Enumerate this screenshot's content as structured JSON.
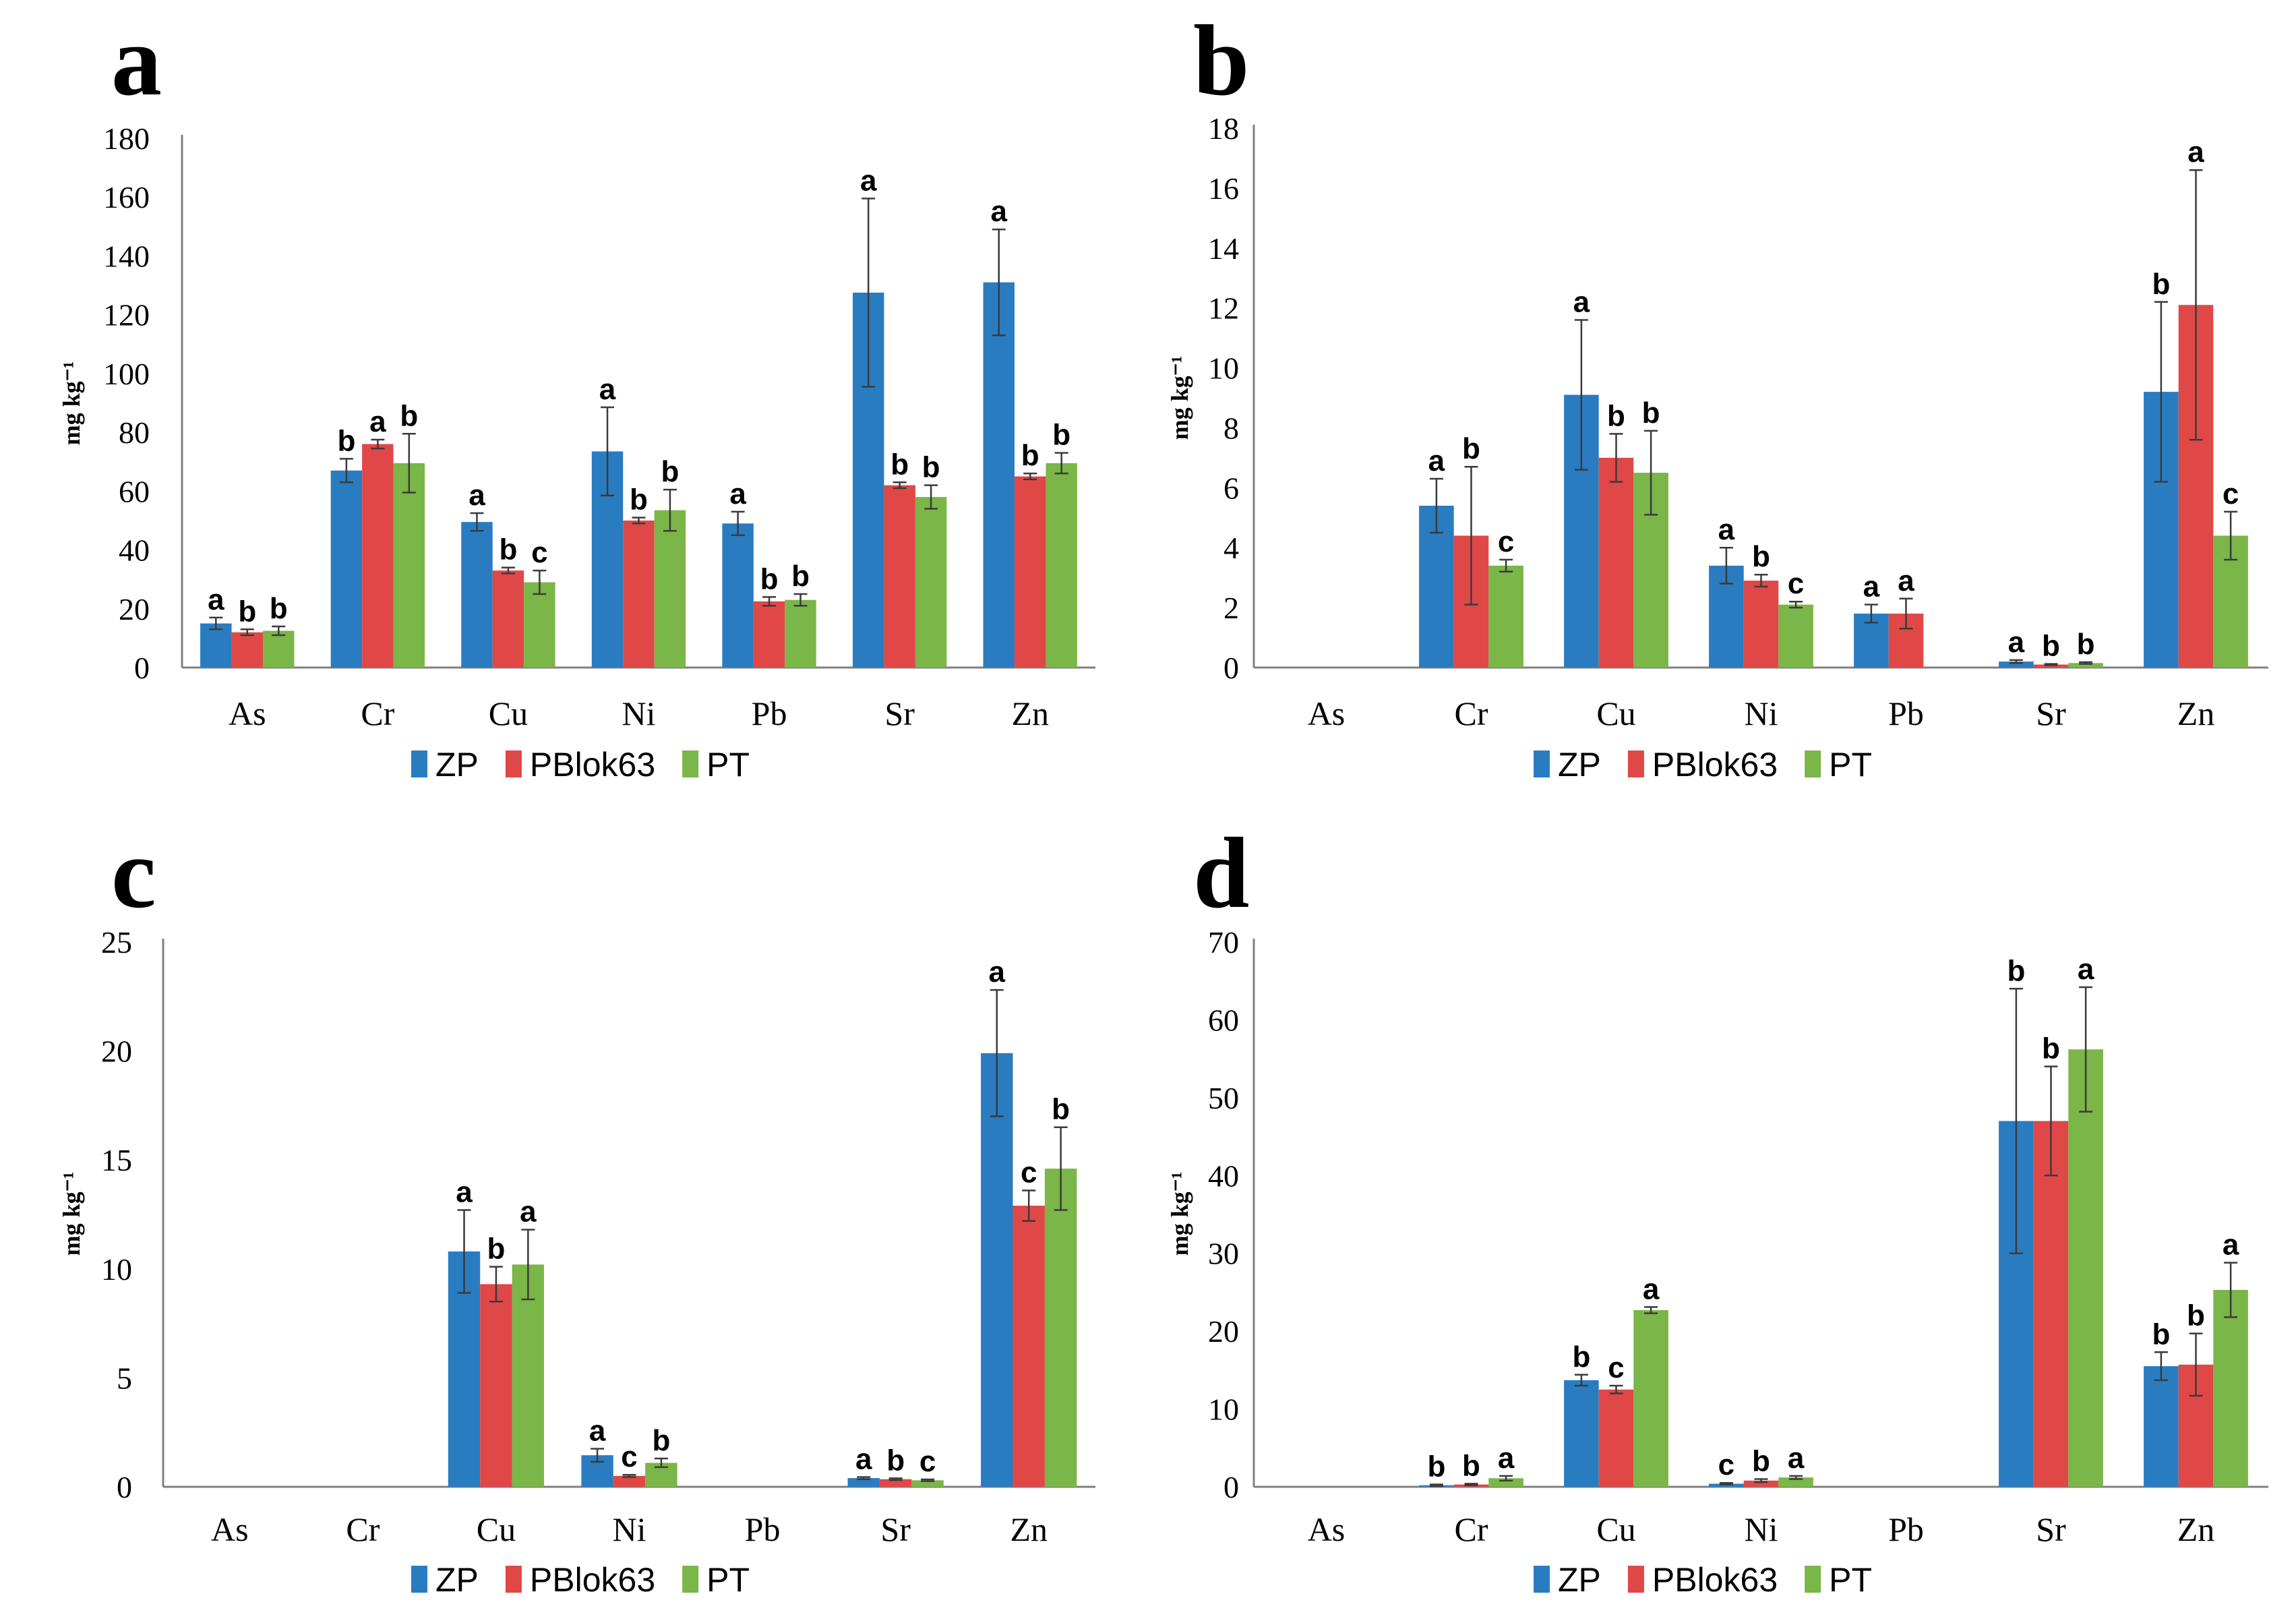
{
  "colors": {
    "ZP": "#2a7cc1",
    "PBlok63": "#e04848",
    "PT": "#7ab648"
  },
  "chart_data": [
    {
      "panel": "a",
      "type": "bar",
      "ylabel": "mg kg⁻¹",
      "ylim": [
        0,
        180
      ],
      "yticks": [
        0,
        20,
        40,
        60,
        80,
        100,
        120,
        140,
        160,
        180
      ],
      "categories": [
        "As",
        "Cr",
        "Cu",
        "Ni",
        "Pb",
        "Sr",
        "Zn"
      ],
      "legend": "bottom",
      "series": [
        {
          "name": "ZP",
          "values": [
            15,
            67,
            49.5,
            73.5,
            49,
            127.5,
            131
          ],
          "errors": [
            2,
            4,
            3,
            15,
            4,
            32,
            18
          ],
          "labels": [
            "a",
            "b",
            "a",
            "a",
            "a",
            "a",
            "a"
          ]
        },
        {
          "name": "PBlok63",
          "values": [
            12,
            76,
            33,
            50,
            22.5,
            62,
            65
          ],
          "errors": [
            1,
            1.5,
            1,
            1,
            1.5,
            1,
            1
          ],
          "labels": [
            "b",
            "a",
            "b",
            "b",
            "b",
            "b",
            "b"
          ]
        },
        {
          "name": "PT",
          "values": [
            12.5,
            69.5,
            29,
            53.5,
            23,
            58,
            69.5
          ],
          "errors": [
            1.5,
            10,
            4,
            7,
            2,
            4,
            3.5
          ],
          "labels": [
            "b",
            "b",
            "c",
            "b",
            "b",
            "b",
            "b"
          ]
        }
      ]
    },
    {
      "panel": "b",
      "type": "bar",
      "ylabel": "mg kg⁻¹",
      "ylim": [
        0,
        18
      ],
      "yticks": [
        0,
        2,
        4,
        6,
        8,
        10,
        12,
        14,
        16,
        18
      ],
      "categories": [
        "As",
        "Cr",
        "Cu",
        "Ni",
        "Pb",
        "Sr",
        "Zn"
      ],
      "legend": "bottom",
      "series": [
        {
          "name": "ZP",
          "values": [
            0,
            5.4,
            9.1,
            3.4,
            1.8,
            0.2,
            9.2
          ],
          "errors": [
            0,
            0.9,
            2.5,
            0.6,
            0.3,
            0.05,
            3
          ],
          "labels": [
            "",
            "a",
            "a",
            "a",
            "a",
            "a",
            "b"
          ]
        },
        {
          "name": "PBlok63",
          "values": [
            0,
            4.4,
            7,
            2.9,
            1.8,
            0.1,
            12.1
          ],
          "errors": [
            0,
            2.3,
            0.8,
            0.2,
            0.5,
            0.02,
            4.5
          ],
          "labels": [
            "",
            "b",
            "b",
            "b",
            "a",
            "b",
            "a"
          ]
        },
        {
          "name": "PT",
          "values": [
            0,
            3.4,
            6.5,
            2.1,
            0,
            0.15,
            4.4
          ],
          "errors": [
            0,
            0.2,
            1.4,
            0.1,
            0,
            0.03,
            0.8
          ],
          "labels": [
            "",
            "c",
            "b",
            "c",
            "",
            "b",
            "c"
          ]
        }
      ]
    },
    {
      "panel": "c",
      "type": "bar",
      "ylabel": "mg kg⁻¹",
      "ylim": [
        0,
        25
      ],
      "yticks": [
        0,
        5,
        10,
        15,
        20,
        25
      ],
      "categories": [
        "As",
        "Cr",
        "Cu",
        "Ni",
        "Pb",
        "Sr",
        "Zn"
      ],
      "legend": "bottom",
      "series": [
        {
          "name": "ZP",
          "values": [
            0,
            0,
            10.8,
            1.45,
            0,
            0.4,
            19.9
          ],
          "errors": [
            0,
            0,
            1.9,
            0.3,
            0,
            0.05,
            2.9
          ],
          "labels": [
            "",
            "",
            "a",
            "a",
            "",
            "a",
            "a"
          ]
        },
        {
          "name": "PBlok63",
          "values": [
            0,
            0,
            9.3,
            0.5,
            0,
            0.35,
            12.9
          ],
          "errors": [
            0,
            0,
            0.8,
            0.05,
            0,
            0.04,
            0.7
          ],
          "labels": [
            "",
            "",
            "b",
            "c",
            "",
            "b",
            "c"
          ]
        },
        {
          "name": "PT",
          "values": [
            0,
            0,
            10.2,
            1.1,
            0,
            0.3,
            14.6
          ],
          "errors": [
            0,
            0,
            1.6,
            0.2,
            0,
            0.04,
            1.9
          ],
          "labels": [
            "",
            "",
            "a",
            "b",
            "",
            "c",
            "b"
          ]
        }
      ]
    },
    {
      "panel": "d",
      "type": "bar",
      "ylabel": "mg kg⁻¹",
      "ylim": [
        0,
        70
      ],
      "yticks": [
        0,
        10,
        20,
        30,
        40,
        50,
        60,
        70
      ],
      "categories": [
        "As",
        "Cr",
        "Cu",
        "Ni",
        "Pb",
        "Sr",
        "Zn"
      ],
      "legend": "bottom",
      "series": [
        {
          "name": "ZP",
          "values": [
            0,
            0.2,
            13.7,
            0.4,
            0,
            47,
            15.5
          ],
          "errors": [
            0,
            0.1,
            0.7,
            0.1,
            0,
            17,
            1.8
          ],
          "labels": [
            "",
            "b",
            "b",
            "c",
            "",
            "b",
            "b"
          ]
        },
        {
          "name": "PBlok63",
          "values": [
            0,
            0.3,
            12.5,
            0.8,
            0,
            47,
            15.7
          ],
          "errors": [
            0,
            0.1,
            0.5,
            0.2,
            0,
            7,
            4
          ],
          "labels": [
            "",
            "b",
            "c",
            "b",
            "",
            "b",
            "b"
          ]
        },
        {
          "name": "PT",
          "values": [
            0,
            1.1,
            22.7,
            1.2,
            0,
            56.2,
            25.3
          ],
          "errors": [
            0,
            0.3,
            0.4,
            0.2,
            0,
            8,
            3.5
          ],
          "labels": [
            "",
            "a",
            "a",
            "a",
            "",
            "a",
            "a"
          ]
        }
      ]
    }
  ]
}
